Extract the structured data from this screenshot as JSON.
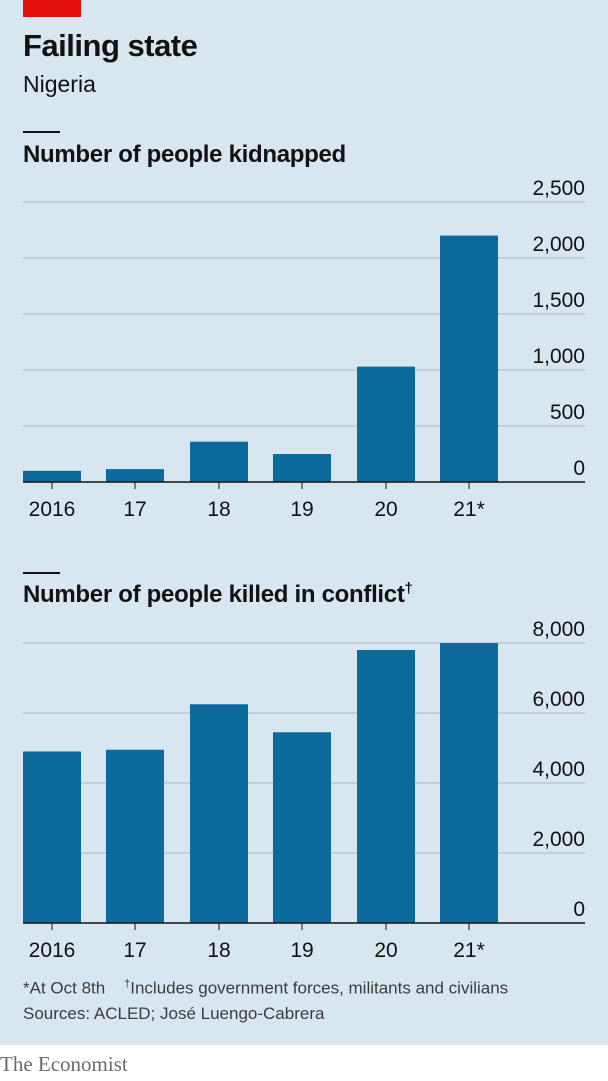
{
  "header": {
    "title": "Failing state",
    "subtitle": "Nigeria"
  },
  "colors": {
    "bar": "#0d6a9c",
    "grid": "#a9b9c4",
    "axis": "#121212",
    "accent": "#e3120b"
  },
  "chart_data": [
    {
      "type": "bar",
      "title": "Number of people kidnapped",
      "title_mark": "",
      "categories": [
        "2016",
        "17",
        "18",
        "19",
        "20",
        "21*"
      ],
      "values": [
        100,
        115,
        360,
        250,
        1030,
        2200
      ],
      "ylim": [
        0,
        2500
      ],
      "yticks": [
        0,
        500,
        1000,
        1500,
        2000,
        2500
      ],
      "ytick_labels": [
        "0",
        "500",
        "1,000",
        "1,500",
        "2,000",
        "2,500"
      ],
      "grid": true
    },
    {
      "type": "bar",
      "title": "Number of people killed in conflict",
      "title_mark": "†",
      "categories": [
        "2016",
        "17",
        "18",
        "19",
        "20",
        "21*"
      ],
      "values": [
        4900,
        4950,
        6250,
        5450,
        7800,
        8000
      ],
      "ylim": [
        0,
        8000
      ],
      "yticks": [
        0,
        2000,
        4000,
        6000,
        8000
      ],
      "ytick_labels": [
        "0",
        "2,000",
        "4,000",
        "6,000",
        "8,000"
      ],
      "grid": true
    }
  ],
  "footer": {
    "note1": "*At Oct 8th",
    "note2_mark": "†",
    "note2": "Includes government forces, militants and civilians",
    "sources": "Sources: ACLED; José Luengo-Cabrera",
    "brand": "The Economist"
  }
}
